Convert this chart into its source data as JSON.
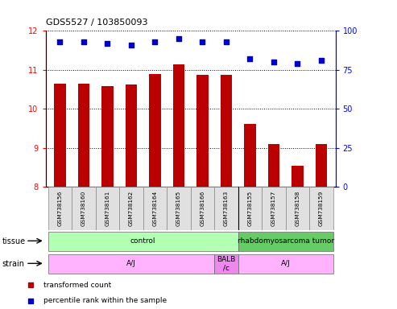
{
  "title": "GDS5527 / 103850093",
  "samples": [
    "GSM738156",
    "GSM738160",
    "GSM738161",
    "GSM738162",
    "GSM738164",
    "GSM738165",
    "GSM738166",
    "GSM738163",
    "GSM738155",
    "GSM738157",
    "GSM738158",
    "GSM738159"
  ],
  "bar_values": [
    10.65,
    10.65,
    10.58,
    10.63,
    10.9,
    11.15,
    10.88,
    10.88,
    9.62,
    9.1,
    8.55,
    9.1
  ],
  "scatter_values": [
    93,
    93,
    92,
    91,
    93,
    95,
    93,
    93,
    82,
    80,
    79,
    81
  ],
  "bar_color": "#bb0000",
  "scatter_color": "#0000cc",
  "ylim_left": [
    8,
    12
  ],
  "ylim_right": [
    0,
    100
  ],
  "yticks_left": [
    8,
    9,
    10,
    11,
    12
  ],
  "yticks_right": [
    0,
    25,
    50,
    75,
    100
  ],
  "tissue_groups": [
    {
      "label": "control",
      "start": 0,
      "end": 8,
      "color": "#b3ffb3"
    },
    {
      "label": "rhabdomyosarcoma tumor",
      "start": 8,
      "end": 12,
      "color": "#66cc66"
    }
  ],
  "strain_groups": [
    {
      "label": "A/J",
      "start": 0,
      "end": 7,
      "color": "#ffb3ff"
    },
    {
      "label": "BALB\n/c",
      "start": 7,
      "end": 8,
      "color": "#ee88ee"
    },
    {
      "label": "A/J",
      "start": 8,
      "end": 12,
      "color": "#ffb3ff"
    }
  ],
  "legend_items": [
    {
      "label": "transformed count",
      "color": "#bb0000"
    },
    {
      "label": "percentile rank within the sample",
      "color": "#0000cc"
    }
  ],
  "tissue_label": "tissue",
  "strain_label": "strain"
}
